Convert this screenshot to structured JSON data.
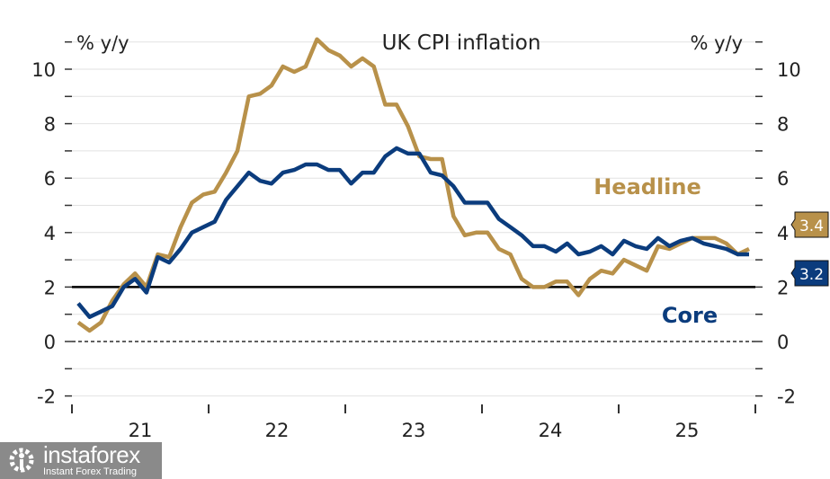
{
  "chart_data": {
    "type": "line",
    "title": "UK CPI inflation",
    "ylabel_left": "% y/y",
    "ylabel_right": "% y/y",
    "ylim": [
      -2.5,
      11
    ],
    "yticks": [
      -2,
      0,
      2,
      4,
      6,
      8,
      10
    ],
    "xtick_labels": [
      "21",
      "22",
      "23",
      "24",
      "25"
    ],
    "x_start": "2021-01",
    "x_end": "2025-12",
    "frequency": "monthly",
    "reference_lines": [
      {
        "y": 2,
        "style": "solid"
      },
      {
        "y": 0,
        "style": "dashed"
      }
    ],
    "grid": true,
    "series": [
      {
        "name": "Headline",
        "color": "#B8914A",
        "end_label": "3.4",
        "values": [
          0.7,
          0.4,
          0.7,
          1.5,
          2.1,
          2.5,
          2.0,
          3.2,
          3.1,
          4.2,
          5.1,
          5.4,
          5.5,
          6.2,
          7.0,
          9.0,
          9.1,
          9.4,
          10.1,
          9.9,
          10.1,
          11.1,
          10.7,
          10.5,
          10.1,
          10.4,
          10.1,
          8.7,
          8.7,
          7.9,
          6.8,
          6.7,
          6.7,
          4.6,
          3.9,
          4.0,
          4.0,
          3.4,
          3.2,
          2.3,
          2.0,
          2.0,
          2.2,
          2.2,
          1.7,
          2.3,
          2.6,
          2.5,
          3.0,
          2.8,
          2.6,
          3.5,
          3.4,
          3.6,
          3.8,
          3.8,
          3.8,
          3.6,
          3.2,
          3.4
        ]
      },
      {
        "name": "Core",
        "color": "#0B3C7D",
        "end_label": "3.2",
        "values": [
          1.4,
          0.9,
          1.1,
          1.3,
          2.0,
          2.3,
          1.8,
          3.1,
          2.9,
          3.4,
          4.0,
          4.2,
          4.4,
          5.2,
          5.7,
          6.2,
          5.9,
          5.8,
          6.2,
          6.3,
          6.5,
          6.5,
          6.3,
          6.3,
          5.8,
          6.2,
          6.2,
          6.8,
          7.1,
          6.9,
          6.9,
          6.2,
          6.1,
          5.7,
          5.1,
          5.1,
          5.1,
          4.5,
          4.2,
          3.9,
          3.5,
          3.5,
          3.3,
          3.6,
          3.2,
          3.3,
          3.5,
          3.2,
          3.7,
          3.5,
          3.4,
          3.8,
          3.5,
          3.7,
          3.8,
          3.6,
          3.5,
          3.4,
          3.2,
          3.2
        ]
      }
    ]
  },
  "watermark": {
    "name": "instaforex",
    "tagline": "Instant Forex Trading"
  }
}
